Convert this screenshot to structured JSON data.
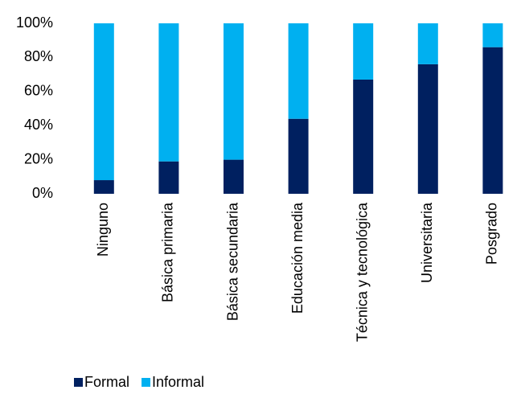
{
  "chart_data": {
    "type": "stacked_bar",
    "categories": [
      "Ninguno",
      "Básica primaria",
      "Básica secundaria",
      "Educación media",
      "Técnica y tecnológica",
      "Universitaria",
      "Posgrado"
    ],
    "series": [
      {
        "name": "Formal",
        "color": "#002060",
        "values": [
          8,
          19,
          20,
          44,
          67,
          76,
          86
        ]
      },
      {
        "name": "Informal",
        "color": "#00b0f0",
        "values": [
          92,
          81,
          80,
          56,
          33,
          24,
          14
        ]
      }
    ],
    "ylim": [
      0,
      100
    ],
    "yticks": [
      {
        "value": 0,
        "label": "0%"
      },
      {
        "value": 20,
        "label": "20%"
      },
      {
        "value": 40,
        "label": "40%"
      },
      {
        "value": 60,
        "label": "60%"
      },
      {
        "value": 80,
        "label": "80%"
      },
      {
        "value": 100,
        "label": "100%"
      }
    ],
    "legend": "bottom-left"
  }
}
